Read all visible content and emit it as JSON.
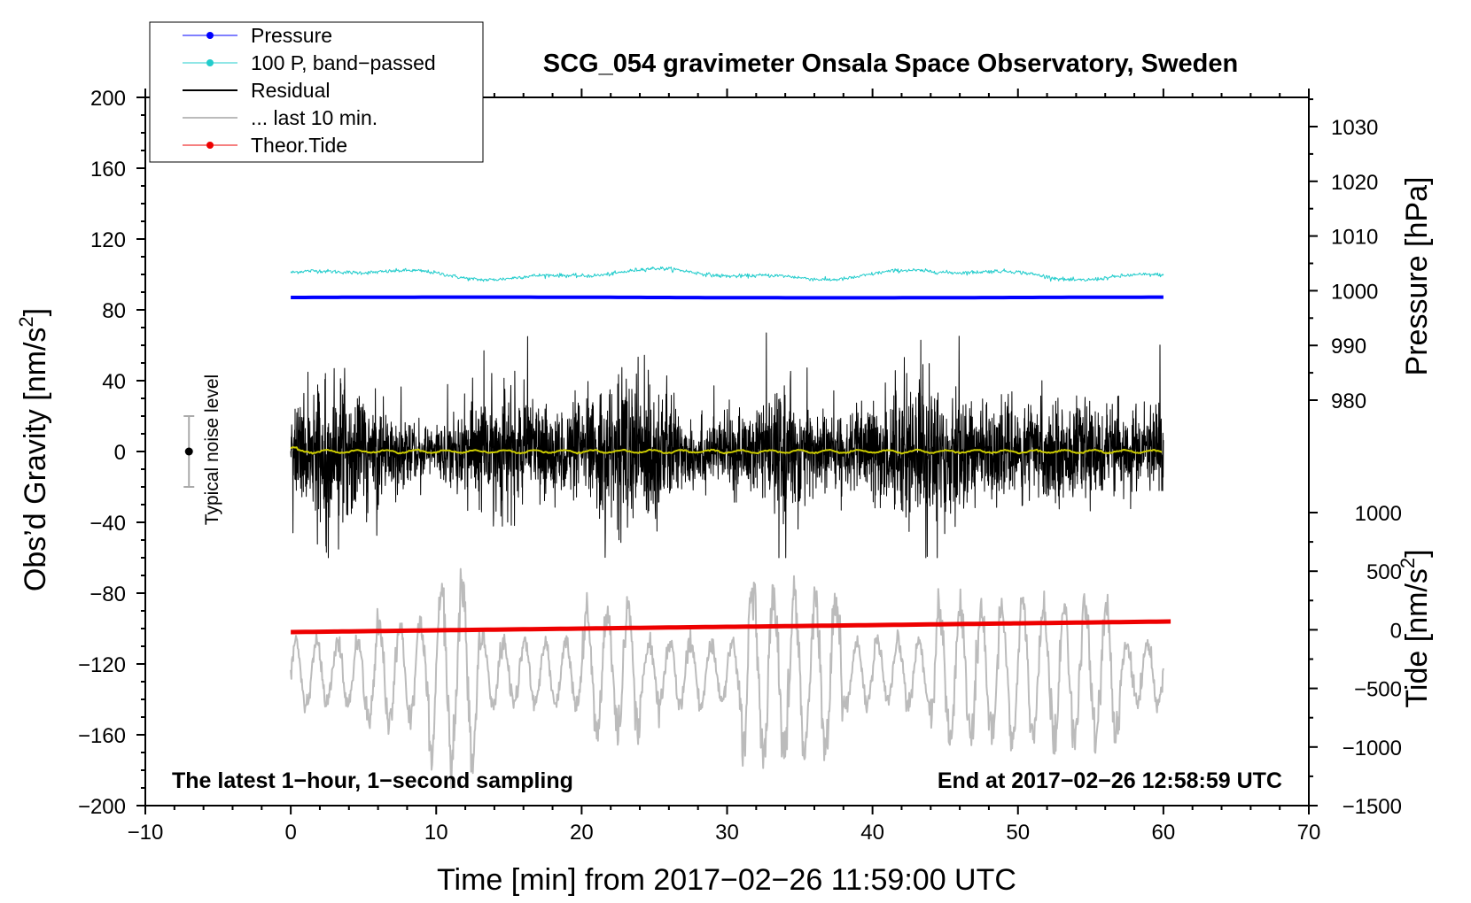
{
  "chart_data": {
    "type": "line",
    "title": "SCG_054 gravimeter Onsala Space Observatory, Sweden",
    "xlabel": "Time [min] from 2017−02−26 11:59:00 UTC",
    "ylabel_left_main": "Obs’d Gravity [nm/s",
    "ylabel_left_sup": "2",
    "ylabel_left_end": "]",
    "ylabel_right_pressure": "Pressure [hPa]",
    "ylabel_right_tide_main": "Tide [nm/s",
    "ylabel_right_tide_sup": "2",
    "ylabel_right_tide_end": "]",
    "xlim": [
      -10,
      70
    ],
    "ylim_left": [
      -200,
      200
    ],
    "ylim_pressure": [
      975,
      1035
    ],
    "ylim_tide": [
      -1500,
      1000
    ],
    "x_ticks": [
      "−10",
      "0",
      "10",
      "20",
      "30",
      "40",
      "50",
      "60",
      "70"
    ],
    "x_tick_values": [
      -10,
      0,
      10,
      20,
      30,
      40,
      50,
      60,
      70
    ],
    "y_left_ticks": [
      "200",
      "160",
      "120",
      "80",
      "40",
      "0",
      "−40",
      "−80",
      "−120",
      "−160",
      "−200"
    ],
    "y_left_tick_values": [
      200,
      160,
      120,
      80,
      40,
      0,
      -40,
      -80,
      -120,
      -160,
      -200
    ],
    "pressure_ticks": [
      "1030",
      "1020",
      "1010",
      "1000",
      "990",
      "980"
    ],
    "pressure_tick_values": [
      1030,
      1020,
      1010,
      1000,
      990,
      980
    ],
    "tide_ticks": [
      "1000",
      "500",
      "0",
      "−500",
      "−1000",
      "−1500"
    ],
    "tide_tick_values": [
      1000,
      500,
      0,
      -500,
      -1000,
      -1500
    ],
    "legend": [
      {
        "label": "Pressure",
        "color": "#0000ff",
        "marker": true
      },
      {
        "label": "100 P, band−passed",
        "color": "#22cccc",
        "marker": true
      },
      {
        "label": "Residual",
        "color": "#000000",
        "marker": false
      },
      {
        "label": "... last 10 min.",
        "color": "#bbbbbb",
        "marker": false
      },
      {
        "label": "Theor.Tide",
        "color": "#ee0000",
        "marker": true
      }
    ],
    "series": [
      {
        "name": "Pressure",
        "color": "#0000ff",
        "x_range": [
          0,
          60
        ],
        "approx_value": 87,
        "note": "flat line on left-axis scale"
      },
      {
        "name": "100 P, band−passed",
        "color": "#22cccc",
        "x_range": [
          0,
          60
        ],
        "approx_value": 100,
        "amplitude": 4
      },
      {
        "name": "Residual",
        "color": "#000000",
        "x_range": [
          0,
          60
        ],
        "approx_value": 0,
        "amplitude": 60
      },
      {
        "name": "Residual (smoothed)",
        "color": "#cccc00",
        "x_range": [
          0,
          60
        ],
        "approx_value": 0
      },
      {
        "name": "... last 10 min.",
        "color": "#bbbbbb",
        "x_range": [
          0,
          60
        ],
        "approx_value": -125,
        "amplitude": 50
      },
      {
        "name": "Theor.Tide",
        "color": "#ee0000",
        "x_range": [
          0,
          60.5
        ],
        "start_value": -102,
        "end_value": -96
      }
    ],
    "noise_label": "Typical noise level",
    "noise_bar": {
      "x": -7,
      "center": 0,
      "low": -20,
      "high": 20
    },
    "annotation_left": "The latest 1−hour, 1−second sampling",
    "annotation_right": "End at 2017−02−26 12:58:59 UTC"
  }
}
